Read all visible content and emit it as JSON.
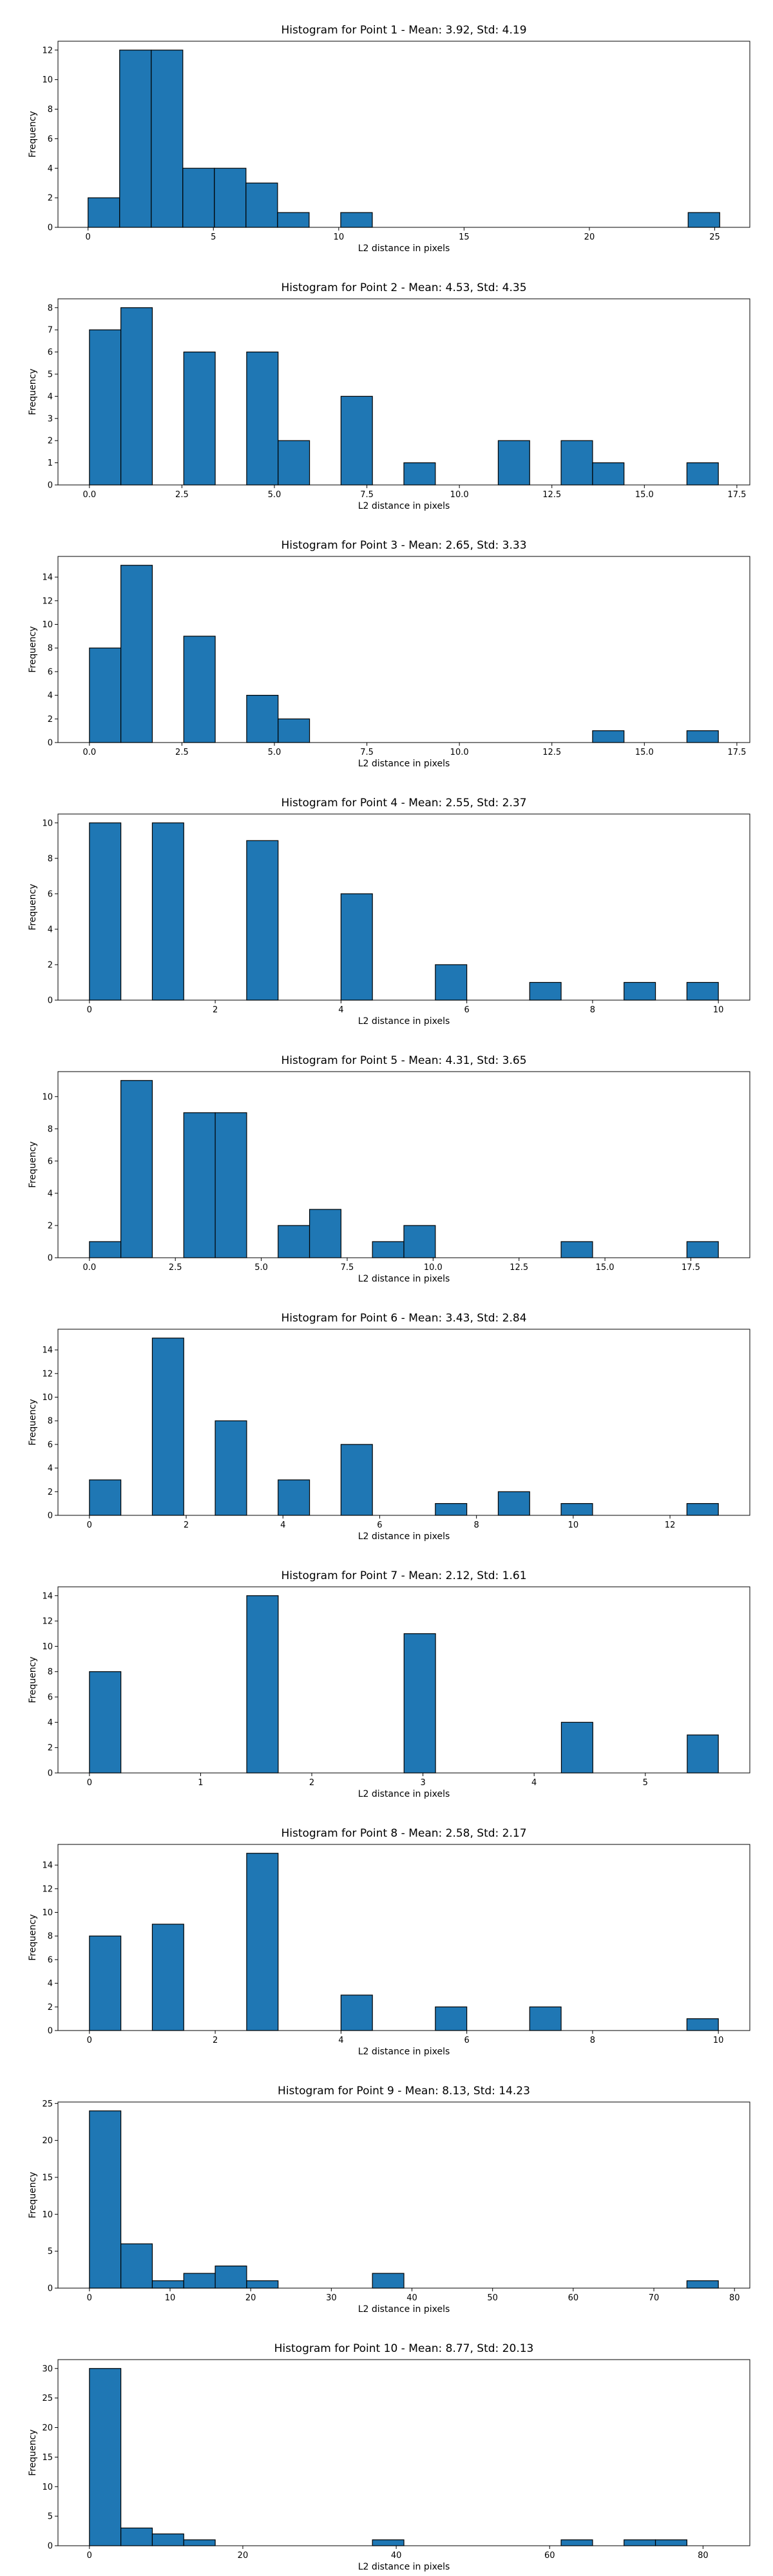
{
  "chart_data": [
    {
      "type": "bar",
      "title": "Histogram for Point 1 - Mean: 3.92, Std: 4.19",
      "xlabel": "L2 distance in pixels",
      "ylabel": "Frequency",
      "xlim": [
        -1.2,
        26.4
      ],
      "ylim": [
        0,
        12.6
      ],
      "xticks": [
        0,
        5,
        10,
        15,
        20,
        25
      ],
      "yticks": [
        0,
        2,
        4,
        6,
        8,
        10,
        12
      ],
      "bin_edges": [
        0,
        1.26,
        2.52,
        3.78,
        5.04,
        6.3,
        7.56,
        8.82,
        10.08,
        11.34,
        12.6,
        13.86,
        15.12,
        16.38,
        17.64,
        18.9,
        20.16,
        21.42,
        22.68,
        23.94,
        25.2
      ],
      "counts": [
        2,
        12,
        12,
        4,
        4,
        3,
        1,
        0,
        1,
        0,
        0,
        0,
        0,
        0,
        0,
        0,
        0,
        0,
        0,
        1
      ],
      "color": "#1f77b4",
      "grid": false
    },
    {
      "type": "bar",
      "title": "Histogram for Point 2 - Mean: 4.53, Std: 4.35",
      "xlabel": "L2 distance in pixels",
      "ylabel": "Frequency",
      "xlim": [
        -0.85,
        17.85
      ],
      "ylim": [
        0,
        8.4
      ],
      "xticks": [
        0,
        2.5,
        5,
        7.5,
        10,
        12.5,
        15,
        17.5
      ],
      "xtick_labels": [
        "0.0",
        "2.5",
        "5.0",
        "7.5",
        "10.0",
        "12.5",
        "15.0",
        "17.5"
      ],
      "yticks": [
        0,
        1,
        2,
        3,
        4,
        5,
        6,
        7,
        8
      ],
      "bin_edges": [
        0,
        0.85,
        1.7,
        2.55,
        3.4,
        4.25,
        5.1,
        5.95,
        6.8,
        7.65,
        8.5,
        9.35,
        10.2,
        11.05,
        11.9,
        12.75,
        13.6,
        14.45,
        15.3,
        16.15,
        17.0
      ],
      "counts": [
        7,
        8,
        0,
        6,
        0,
        6,
        2,
        0,
        4,
        0,
        1,
        0,
        0,
        2,
        0,
        2,
        1,
        0,
        0,
        1
      ],
      "color": "#1f77b4",
      "grid": false
    },
    {
      "type": "bar",
      "title": "Histogram for Point 3 - Mean: 2.65, Std: 3.33",
      "xlabel": "L2 distance in pixels",
      "ylabel": "Frequency",
      "xlim": [
        -0.85,
        17.85
      ],
      "ylim": [
        0,
        15.75
      ],
      "xticks": [
        0,
        2.5,
        5,
        7.5,
        10,
        12.5,
        15,
        17.5
      ],
      "xtick_labels": [
        "0.0",
        "2.5",
        "5.0",
        "7.5",
        "10.0",
        "12.5",
        "15.0",
        "17.5"
      ],
      "yticks": [
        0,
        2,
        4,
        6,
        8,
        10,
        12,
        14
      ],
      "bin_edges": [
        0,
        0.85,
        1.7,
        2.55,
        3.4,
        4.25,
        5.1,
        5.95,
        6.8,
        7.65,
        8.5,
        9.35,
        10.2,
        11.05,
        11.9,
        12.75,
        13.6,
        14.45,
        15.3,
        16.15,
        17.0
      ],
      "counts": [
        8,
        15,
        0,
        9,
        0,
        4,
        2,
        0,
        0,
        0,
        0,
        0,
        0,
        0,
        0,
        0,
        1,
        0,
        0,
        1
      ],
      "color": "#1f77b4",
      "grid": false
    },
    {
      "type": "bar",
      "title": "Histogram for Point 4 - Mean: 2.55, Std: 2.37",
      "xlabel": "L2 distance in pixels",
      "ylabel": "Frequency",
      "xlim": [
        -0.5,
        10.5
      ],
      "ylim": [
        0,
        10.5
      ],
      "xticks": [
        0,
        2,
        4,
        6,
        8,
        10
      ],
      "yticks": [
        0,
        2,
        4,
        6,
        8,
        10
      ],
      "bin_edges": [
        0,
        0.5,
        1,
        1.5,
        2,
        2.5,
        3,
        3.5,
        4,
        4.5,
        5,
        5.5,
        6,
        6.5,
        7,
        7.5,
        8,
        8.5,
        9,
        9.5,
        10
      ],
      "counts": [
        10,
        0,
        10,
        0,
        0,
        9,
        0,
        0,
        6,
        0,
        0,
        2,
        0,
        0,
        1,
        0,
        0,
        1,
        0,
        1
      ],
      "color": "#1f77b4",
      "grid": false
    },
    {
      "type": "bar",
      "title": "Histogram for Point 5 - Mean: 4.31, Std: 3.65",
      "xlabel": "L2 distance in pixels",
      "ylabel": "Frequency",
      "xlim": [
        -0.915,
        19.215
      ],
      "ylim": [
        0,
        11.55
      ],
      "xticks": [
        0,
        2.5,
        5,
        7.5,
        10,
        12.5,
        15,
        17.5
      ],
      "xtick_labels": [
        "0.0",
        "2.5",
        "5.0",
        "7.5",
        "10.0",
        "12.5",
        "15.0",
        "17.5"
      ],
      "yticks": [
        0,
        2,
        4,
        6,
        8,
        10
      ],
      "bin_edges": [
        0,
        0.915,
        1.83,
        2.745,
        3.66,
        4.575,
        5.49,
        6.405,
        7.32,
        8.235,
        9.15,
        10.065,
        10.98,
        11.895,
        12.81,
        13.725,
        14.64,
        15.555,
        16.47,
        17.385,
        18.3
      ],
      "counts": [
        1,
        11,
        0,
        9,
        9,
        0,
        2,
        3,
        0,
        1,
        2,
        0,
        0,
        0,
        0,
        1,
        0,
        0,
        0,
        1
      ],
      "color": "#1f77b4",
      "grid": false
    },
    {
      "type": "bar",
      "title": "Histogram for Point 6 - Mean: 3.43, Std: 2.84",
      "xlabel": "L2 distance in pixels",
      "ylabel": "Frequency",
      "xlim": [
        -0.65,
        13.65
      ],
      "ylim": [
        0,
        15.75
      ],
      "xticks": [
        0,
        2,
        4,
        6,
        8,
        10,
        12
      ],
      "yticks": [
        0,
        2,
        4,
        6,
        8,
        10,
        12,
        14
      ],
      "bin_edges": [
        0,
        0.65,
        1.3,
        1.95,
        2.6,
        3.25,
        3.9,
        4.55,
        5.2,
        5.85,
        6.5,
        7.15,
        7.8,
        8.45,
        9.1,
        9.75,
        10.4,
        11.05,
        11.7,
        12.35,
        13.0
      ],
      "counts": [
        3,
        0,
        15,
        0,
        8,
        0,
        3,
        0,
        6,
        0,
        0,
        1,
        0,
        2,
        0,
        1,
        0,
        0,
        0,
        1
      ],
      "color": "#1f77b4",
      "grid": false
    },
    {
      "type": "bar",
      "title": "Histogram for Point 7 - Mean: 2.12, Std: 1.61",
      "xlabel": "L2 distance in pixels",
      "ylabel": "Frequency",
      "xlim": [
        -0.283,
        5.94
      ],
      "ylim": [
        0,
        14.7
      ],
      "xticks": [
        0,
        1,
        2,
        3,
        4,
        5
      ],
      "yticks": [
        0,
        2,
        4,
        6,
        8,
        10,
        12,
        14
      ],
      "bin_edges": [
        0,
        0.283,
        0.566,
        0.849,
        1.132,
        1.415,
        1.698,
        1.981,
        2.264,
        2.547,
        2.83,
        3.113,
        3.396,
        3.679,
        3.962,
        4.245,
        4.528,
        4.811,
        5.094,
        5.377,
        5.657
      ],
      "counts": [
        8,
        0,
        0,
        0,
        0,
        14,
        0,
        0,
        0,
        0,
        11,
        0,
        0,
        0,
        0,
        4,
        0,
        0,
        0,
        3
      ],
      "color": "#1f77b4",
      "grid": false
    },
    {
      "type": "bar",
      "title": "Histogram for Point 8 - Mean: 2.58, Std: 2.17",
      "xlabel": "L2 distance in pixels",
      "ylabel": "Frequency",
      "xlim": [
        -0.5,
        10.5
      ],
      "ylim": [
        0,
        15.75
      ],
      "xticks": [
        0,
        2,
        4,
        6,
        8,
        10
      ],
      "yticks": [
        0,
        2,
        4,
        6,
        8,
        10,
        12,
        14
      ],
      "bin_edges": [
        0,
        0.5,
        1,
        1.5,
        2,
        2.5,
        3,
        3.5,
        4,
        4.5,
        5,
        5.5,
        6,
        6.5,
        7,
        7.5,
        8,
        8.5,
        9,
        9.5,
        10
      ],
      "counts": [
        8,
        0,
        9,
        0,
        0,
        15,
        0,
        0,
        3,
        0,
        0,
        2,
        0,
        0,
        2,
        0,
        0,
        0,
        0,
        1
      ],
      "color": "#1f77b4",
      "grid": false
    },
    {
      "type": "bar",
      "title": "Histogram for Point 9 - Mean: 8.13, Std: 14.23",
      "xlabel": "L2 distance in pixels",
      "ylabel": "Frequency",
      "xlim": [
        -3.9,
        81.9
      ],
      "ylim": [
        0,
        25.2
      ],
      "xticks": [
        0,
        10,
        20,
        30,
        40,
        50,
        60,
        70,
        80
      ],
      "yticks": [
        0,
        5,
        10,
        15,
        20,
        25
      ],
      "bin_edges": [
        0,
        3.9,
        7.8,
        11.7,
        15.6,
        19.5,
        23.4,
        27.3,
        31.2,
        35.1,
        39.0,
        42.9,
        46.8,
        50.7,
        54.6,
        58.5,
        62.4,
        66.3,
        70.2,
        74.1,
        78.0
      ],
      "counts": [
        24,
        6,
        1,
        2,
        3,
        1,
        0,
        0,
        0,
        2,
        0,
        0,
        0,
        0,
        0,
        0,
        0,
        0,
        0,
        1
      ],
      "color": "#1f77b4",
      "grid": false
    },
    {
      "type": "bar",
      "title": "Histogram for Point 10 - Mean: 8.77, Std: 20.13",
      "xlabel": "L2 distance in pixels",
      "ylabel": "Frequency",
      "xlim": [
        -4.1,
        86.1
      ],
      "ylim": [
        0,
        31.5
      ],
      "xticks": [
        0,
        20,
        40,
        60,
        80
      ],
      "yticks": [
        0,
        5,
        10,
        15,
        20,
        25,
        30
      ],
      "bin_edges": [
        0,
        4.1,
        8.2,
        12.3,
        16.4,
        20.5,
        24.6,
        28.7,
        32.8,
        36.9,
        41.0,
        45.1,
        49.2,
        53.3,
        57.4,
        61.5,
        65.6,
        69.7,
        73.8,
        77.9,
        82.0
      ],
      "counts": [
        30,
        3,
        2,
        1,
        0,
        0,
        0,
        0,
        0,
        1,
        0,
        0,
        0,
        0,
        0,
        1,
        0,
        1,
        1,
        0
      ],
      "color": "#1f77b4",
      "grid": false
    }
  ]
}
